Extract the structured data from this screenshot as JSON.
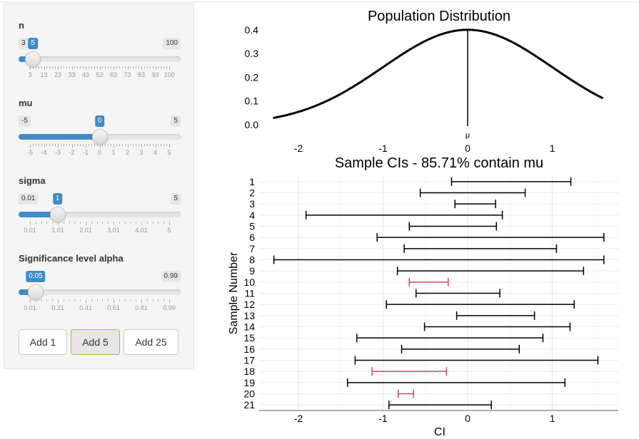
{
  "sidebar": {
    "sliders": [
      {
        "label": "n",
        "min": 3,
        "max": 100,
        "value": 5,
        "min_text": "3",
        "max_text": "100",
        "value_text": "5",
        "ticks": [
          "3",
          "13",
          "23",
          "33",
          "43",
          "53",
          "63",
          "73",
          "83",
          "93",
          "100"
        ]
      },
      {
        "label": "mu",
        "min": -5,
        "max": 5,
        "value": 0,
        "min_text": "-5",
        "max_text": "5",
        "value_text": "0",
        "ticks": [
          "-5",
          "-4",
          "-3",
          "-2",
          "-1",
          "0",
          "1",
          "2",
          "3",
          "4",
          "5"
        ]
      },
      {
        "label": "sigma",
        "min": 0.01,
        "max": 5,
        "value": 1,
        "min_text": "0.01",
        "max_text": "5",
        "value_text": "1",
        "ticks": [
          "0.01",
          "1.01",
          "2.01",
          "3.01",
          "4.01",
          "5"
        ]
      },
      {
        "label": "Significance level alpha",
        "min": 0.01,
        "max": 0.99,
        "value": 0.05,
        "min_text": "",
        "max_text": "0.99",
        "value_text": "0.05",
        "ticks": [
          "0.01",
          "0.21",
          "0.41",
          "0.61",
          "0.81",
          "0.99"
        ]
      }
    ],
    "buttons": [
      {
        "label": "Add 1",
        "active": false
      },
      {
        "label": "Add 5",
        "active": true
      },
      {
        "label": "Add 25",
        "active": false
      }
    ]
  },
  "chart_data": [
    {
      "type": "line",
      "title": "Population Distribution",
      "x_range": [
        -2.3,
        1.6
      ],
      "ylim": [
        0,
        0.4
      ],
      "y_ticks": [
        "0.0",
        "0.1",
        "0.2",
        "0.3",
        "0.4"
      ],
      "x_ticks": [
        "-2",
        "-1",
        "0",
        "1"
      ],
      "mu_marker": {
        "x": 0,
        "label": "μ"
      },
      "series": [
        {
          "distribution": "normal",
          "mean": 0,
          "sd": 1
        }
      ]
    },
    {
      "type": "interval",
      "title": "Sample CIs - 85.71% contain mu",
      "xlabel": "CI",
      "ylabel": "Sample Number",
      "x_ticks": [
        "-2",
        "-1",
        "0",
        "1"
      ],
      "colors": {
        "contains": "#000000",
        "misses": "#d1495b"
      },
      "intervals": [
        {
          "sample": "1",
          "low": -0.19,
          "high": 1.22
        },
        {
          "sample": "2",
          "low": -0.56,
          "high": 0.68
        },
        {
          "sample": "3",
          "low": -0.15,
          "high": 0.33
        },
        {
          "sample": "4",
          "low": -1.91,
          "high": 0.41
        },
        {
          "sample": "5",
          "low": -0.69,
          "high": 0.34
        },
        {
          "sample": "6",
          "low": -1.07,
          "high": 1.61
        },
        {
          "sample": "7",
          "low": -0.75,
          "high": 1.05
        },
        {
          "sample": "8",
          "low": -2.29,
          "high": 1.61
        },
        {
          "sample": "9",
          "low": -0.83,
          "high": 1.37
        },
        {
          "sample": "10",
          "low": -0.69,
          "high": -0.23
        },
        {
          "sample": "11",
          "low": -0.61,
          "high": 0.38
        },
        {
          "sample": "12",
          "low": -0.96,
          "high": 1.26
        },
        {
          "sample": "13",
          "low": -0.13,
          "high": 0.79
        },
        {
          "sample": "14",
          "low": -0.51,
          "high": 1.21
        },
        {
          "sample": "15",
          "low": -1.31,
          "high": 0.89
        },
        {
          "sample": "16",
          "low": -0.78,
          "high": 0.61
        },
        {
          "sample": "17",
          "low": -1.33,
          "high": 1.54
        },
        {
          "sample": "18",
          "low": -1.13,
          "high": -0.25
        },
        {
          "sample": "19",
          "low": -1.42,
          "high": 1.15
        },
        {
          "sample": "20",
          "low": -0.82,
          "high": -0.64
        },
        {
          "sample": "21",
          "low": -0.93,
          "high": 0.28
        }
      ]
    }
  ]
}
